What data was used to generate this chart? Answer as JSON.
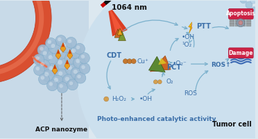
{
  "bg_color": "#dce8f0",
  "fig_width": 3.72,
  "fig_height": 2.0,
  "blood_vessel_color": "#d94f30",
  "label_acp": "ACP nanozyme",
  "label_laser": "1064 nm",
  "label_ptt": "PTT",
  "label_pct": "PCT",
  "label_cdt": "CDT",
  "label_apoptosis": "Apoptosis",
  "label_damage": "Damage",
  "label_ros1": "ROS↑",
  "label_ros2": "ROS",
  "label_oh1": "•OH",
  "label_oh2": "•OH",
  "label_o2_singlet": "¹O₂",
  "label_o2_radical": "•O₂⁻",
  "label_o2": "O₂",
  "label_h2o2": "H₂O₂",
  "label_cu": "Cu⁺",
  "label_bottom": "Photo-enhanced catalytic activity",
  "label_tumor": "Tumor cell",
  "arrow_color": "#7ab0cc",
  "text_blue": "#3a6ea8",
  "text_dark": "#111111"
}
